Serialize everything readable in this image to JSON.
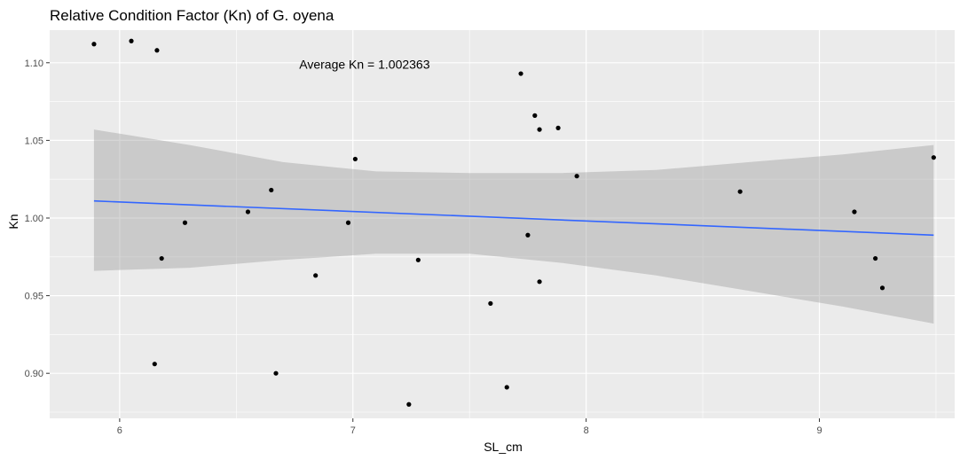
{
  "chart_data": {
    "type": "scatter",
    "title": "Relative Condition Factor (Kn) of G. oyena",
    "xlabel": "SL_cm",
    "ylabel": "Kn",
    "xlim": [
      5.7,
      9.58
    ],
    "ylim": [
      0.871,
      1.121
    ],
    "x_ticks": [
      6,
      7,
      8,
      9
    ],
    "y_ticks": [
      0.9,
      0.95,
      1.0,
      1.05,
      1.1
    ],
    "x_tick_labels": [
      "6",
      "7",
      "8",
      "9"
    ],
    "y_tick_labels": [
      "0.90",
      "0.95",
      "1.00",
      "1.05",
      "1.10"
    ],
    "grid": true,
    "annotation": {
      "text": "Average Kn = 1.002363",
      "x": 7.05,
      "y": 1.099
    },
    "points": [
      {
        "x": 5.89,
        "y": 1.112
      },
      {
        "x": 6.05,
        "y": 1.114
      },
      {
        "x": 6.16,
        "y": 1.108
      },
      {
        "x": 6.18,
        "y": 0.974
      },
      {
        "x": 6.15,
        "y": 0.906
      },
      {
        "x": 6.28,
        "y": 0.997
      },
      {
        "x": 6.55,
        "y": 1.004
      },
      {
        "x": 6.65,
        "y": 1.018
      },
      {
        "x": 6.67,
        "y": 0.9
      },
      {
        "x": 6.84,
        "y": 0.963
      },
      {
        "x": 6.98,
        "y": 0.997
      },
      {
        "x": 7.01,
        "y": 1.038
      },
      {
        "x": 7.24,
        "y": 0.88
      },
      {
        "x": 7.28,
        "y": 0.973
      },
      {
        "x": 7.59,
        "y": 0.945
      },
      {
        "x": 7.66,
        "y": 0.891
      },
      {
        "x": 7.72,
        "y": 1.093
      },
      {
        "x": 7.75,
        "y": 0.989
      },
      {
        "x": 7.78,
        "y": 1.066
      },
      {
        "x": 7.8,
        "y": 1.057
      },
      {
        "x": 7.8,
        "y": 0.959
      },
      {
        "x": 7.88,
        "y": 1.058
      },
      {
        "x": 7.96,
        "y": 1.027
      },
      {
        "x": 8.66,
        "y": 1.017
      },
      {
        "x": 9.15,
        "y": 1.004
      },
      {
        "x": 9.24,
        "y": 0.974
      },
      {
        "x": 9.27,
        "y": 0.955
      },
      {
        "x": 9.49,
        "y": 1.039
      }
    ],
    "trend_line": {
      "x": [
        5.89,
        9.49
      ],
      "y": [
        1.011,
        0.989
      ]
    },
    "confidence_band": {
      "x": [
        5.89,
        6.3,
        6.7,
        7.1,
        7.5,
        7.9,
        8.3,
        8.7,
        9.1,
        9.49
      ],
      "upper": [
        1.057,
        1.047,
        1.036,
        1.03,
        1.029,
        1.029,
        1.031,
        1.036,
        1.041,
        1.047
      ],
      "lower": [
        0.966,
        0.968,
        0.973,
        0.977,
        0.977,
        0.971,
        0.963,
        0.953,
        0.943,
        0.932
      ]
    },
    "colors": {
      "panel": "#ebebeb",
      "grid_major": "#ffffff",
      "point": "#000000",
      "trend": "#3366ff",
      "band": "#999999"
    }
  }
}
